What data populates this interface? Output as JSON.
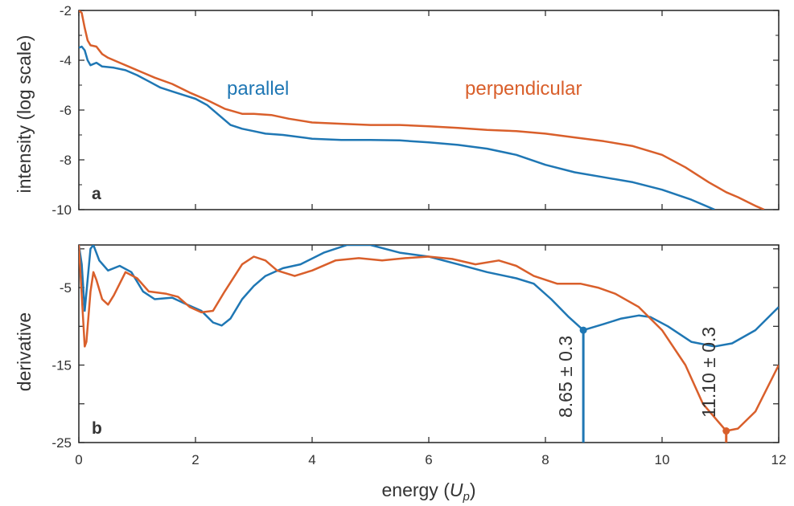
{
  "chart_data": [
    {
      "type": "line",
      "panel": "a",
      "panel_label": "a",
      "xlabel": "",
      "ylabel": "intensity (log scale)",
      "xlim": [
        0,
        12
      ],
      "ylim": [
        -10,
        -2
      ],
      "x_ticks": [
        0,
        2,
        4,
        6,
        8,
        10,
        12
      ],
      "y_ticks": [
        -10,
        -8,
        -6,
        -4,
        -2
      ],
      "y_tick_labels": [
        "-10",
        "-8",
        "-6",
        "-4",
        "-2"
      ],
      "x_tick_labels_shown": false,
      "grid": false,
      "series": [
        {
          "name": "parallel",
          "color": "#1f77b4",
          "points": [
            [
              0.0,
              -3.5
            ],
            [
              0.05,
              -3.45
            ],
            [
              0.1,
              -3.6
            ],
            [
              0.15,
              -4.0
            ],
            [
              0.2,
              -4.2
            ],
            [
              0.3,
              -4.1
            ],
            [
              0.4,
              -4.25
            ],
            [
              0.6,
              -4.3
            ],
            [
              0.8,
              -4.4
            ],
            [
              1.0,
              -4.6
            ],
            [
              1.2,
              -4.85
            ],
            [
              1.4,
              -5.1
            ],
            [
              1.6,
              -5.25
            ],
            [
              1.8,
              -5.4
            ],
            [
              2.0,
              -5.55
            ],
            [
              2.2,
              -5.8
            ],
            [
              2.4,
              -6.2
            ],
            [
              2.6,
              -6.6
            ],
            [
              2.8,
              -6.75
            ],
            [
              3.0,
              -6.85
            ],
            [
              3.2,
              -6.95
            ],
            [
              3.5,
              -7.0
            ],
            [
              4.0,
              -7.15
            ],
            [
              4.5,
              -7.2
            ],
            [
              5.0,
              -7.2
            ],
            [
              5.5,
              -7.22
            ],
            [
              6.0,
              -7.3
            ],
            [
              6.5,
              -7.4
            ],
            [
              7.0,
              -7.55
            ],
            [
              7.5,
              -7.8
            ],
            [
              8.0,
              -8.2
            ],
            [
              8.5,
              -8.5
            ],
            [
              9.0,
              -8.7
            ],
            [
              9.5,
              -8.9
            ],
            [
              10.0,
              -9.2
            ],
            [
              10.5,
              -9.6
            ],
            [
              10.9,
              -10.0
            ]
          ]
        },
        {
          "name": "perpendicular",
          "color": "#d95f2b",
          "points": [
            [
              0.0,
              -2.0
            ],
            [
              0.05,
              -2.1
            ],
            [
              0.1,
              -2.7
            ],
            [
              0.15,
              -3.2
            ],
            [
              0.2,
              -3.4
            ],
            [
              0.3,
              -3.45
            ],
            [
              0.4,
              -3.75
            ],
            [
              0.5,
              -3.9
            ],
            [
              0.7,
              -4.1
            ],
            [
              0.9,
              -4.3
            ],
            [
              1.1,
              -4.5
            ],
            [
              1.3,
              -4.7
            ],
            [
              1.6,
              -4.95
            ],
            [
              1.9,
              -5.3
            ],
            [
              2.2,
              -5.6
            ],
            [
              2.5,
              -5.95
            ],
            [
              2.8,
              -6.15
            ],
            [
              3.0,
              -6.15
            ],
            [
              3.3,
              -6.2
            ],
            [
              3.6,
              -6.35
            ],
            [
              4.0,
              -6.5
            ],
            [
              4.5,
              -6.55
            ],
            [
              5.0,
              -6.6
            ],
            [
              5.5,
              -6.6
            ],
            [
              6.0,
              -6.65
            ],
            [
              6.5,
              -6.72
            ],
            [
              7.0,
              -6.8
            ],
            [
              7.5,
              -6.85
            ],
            [
              8.0,
              -6.95
            ],
            [
              8.5,
              -7.1
            ],
            [
              9.0,
              -7.25
            ],
            [
              9.5,
              -7.45
            ],
            [
              10.0,
              -7.8
            ],
            [
              10.4,
              -8.3
            ],
            [
              10.8,
              -8.9
            ],
            [
              11.1,
              -9.3
            ],
            [
              11.3,
              -9.5
            ],
            [
              11.6,
              -9.85
            ],
            [
              11.75,
              -10.0
            ]
          ]
        }
      ],
      "series_labels": [
        "parallel",
        "perpendicular"
      ]
    },
    {
      "type": "line",
      "panel": "b",
      "panel_label": "b",
      "xlabel": "energy (U_p)",
      "xlabel_main": "energy (",
      "xlabel_var": "U",
      "xlabel_sub": "p",
      "xlabel_close": ")",
      "ylabel": "derivative",
      "xlim": [
        0,
        12
      ],
      "ylim": [
        -25,
        0.5
      ],
      "x_ticks": [
        0,
        2,
        4,
        6,
        8,
        10,
        12
      ],
      "x_tick_labels": [
        "0",
        "2",
        "4",
        "6",
        "8",
        "10",
        "12"
      ],
      "y_ticks": [
        -25,
        -15,
        -5
      ],
      "y_tick_labels": [
        "-25",
        "-15",
        "-5"
      ],
      "grid": false,
      "series": [
        {
          "name": "parallel",
          "color": "#1f77b4",
          "points": [
            [
              0.0,
              0.5
            ],
            [
              0.05,
              -2.0
            ],
            [
              0.1,
              -8.0
            ],
            [
              0.15,
              -4.0
            ],
            [
              0.2,
              0.0
            ],
            [
              0.25,
              0.5
            ],
            [
              0.35,
              -1.5
            ],
            [
              0.5,
              -2.8
            ],
            [
              0.7,
              -2.2
            ],
            [
              0.9,
              -3.0
            ],
            [
              1.1,
              -5.5
            ],
            [
              1.3,
              -6.5
            ],
            [
              1.6,
              -6.3
            ],
            [
              1.8,
              -7.0
            ],
            [
              2.1,
              -8.0
            ],
            [
              2.3,
              -9.5
            ],
            [
              2.45,
              -9.9
            ],
            [
              2.6,
              -9.0
            ],
            [
              2.8,
              -6.5
            ],
            [
              3.0,
              -4.8
            ],
            [
              3.2,
              -3.5
            ],
            [
              3.5,
              -2.5
            ],
            [
              3.8,
              -2.0
            ],
            [
              4.2,
              -0.5
            ],
            [
              4.6,
              0.5
            ],
            [
              5.0,
              0.5
            ],
            [
              5.5,
              -0.5
            ],
            [
              6.0,
              -1.0
            ],
            [
              6.5,
              -2.0
            ],
            [
              7.0,
              -3.0
            ],
            [
              7.5,
              -3.8
            ],
            [
              7.8,
              -4.5
            ],
            [
              8.1,
              -6.5
            ],
            [
              8.4,
              -8.8
            ],
            [
              8.65,
              -10.5
            ],
            [
              9.0,
              -9.7
            ],
            [
              9.3,
              -9.0
            ],
            [
              9.6,
              -8.6
            ],
            [
              9.8,
              -8.8
            ],
            [
              10.1,
              -10.0
            ],
            [
              10.5,
              -12.0
            ],
            [
              10.9,
              -12.6
            ],
            [
              11.2,
              -12.2
            ],
            [
              11.6,
              -10.5
            ],
            [
              12.0,
              -7.5
            ]
          ]
        },
        {
          "name": "perpendicular",
          "color": "#d95f2b",
          "points": [
            [
              0.0,
              0.5
            ],
            [
              0.05,
              -6.0
            ],
            [
              0.1,
              -12.6
            ],
            [
              0.13,
              -12.0
            ],
            [
              0.2,
              -5.5
            ],
            [
              0.25,
              -3.0
            ],
            [
              0.3,
              -4.0
            ],
            [
              0.4,
              -6.5
            ],
            [
              0.5,
              -7.2
            ],
            [
              0.6,
              -6.0
            ],
            [
              0.8,
              -3.0
            ],
            [
              1.0,
              -3.8
            ],
            [
              1.2,
              -5.5
            ],
            [
              1.5,
              -5.8
            ],
            [
              1.7,
              -6.2
            ],
            [
              1.9,
              -7.5
            ],
            [
              2.1,
              -8.2
            ],
            [
              2.3,
              -8.0
            ],
            [
              2.5,
              -5.5
            ],
            [
              2.8,
              -2.0
            ],
            [
              3.0,
              -1.0
            ],
            [
              3.2,
              -1.5
            ],
            [
              3.4,
              -2.8
            ],
            [
              3.7,
              -3.5
            ],
            [
              4.0,
              -2.8
            ],
            [
              4.4,
              -1.5
            ],
            [
              4.8,
              -1.2
            ],
            [
              5.2,
              -1.5
            ],
            [
              5.6,
              -1.2
            ],
            [
              6.0,
              -1.0
            ],
            [
              6.4,
              -1.3
            ],
            [
              6.8,
              -2.0
            ],
            [
              7.2,
              -1.5
            ],
            [
              7.5,
              -2.2
            ],
            [
              7.8,
              -3.5
            ],
            [
              8.2,
              -4.5
            ],
            [
              8.6,
              -4.5
            ],
            [
              8.9,
              -5.0
            ],
            [
              9.2,
              -5.8
            ],
            [
              9.6,
              -7.5
            ],
            [
              10.0,
              -10.5
            ],
            [
              10.4,
              -15.0
            ],
            [
              10.7,
              -20.0
            ],
            [
              11.1,
              -23.5
            ],
            [
              11.3,
              -23.2
            ],
            [
              11.6,
              -21.0
            ],
            [
              12.0,
              -15.0
            ]
          ]
        }
      ],
      "annotations": [
        {
          "label": "8.65 ± 0.3",
          "x": 8.65,
          "y": -10.5,
          "color": "#1f77b4",
          "series": "parallel"
        },
        {
          "label": "11.10 ± 0.3",
          "x": 11.1,
          "y": -23.5,
          "color": "#d95f2b",
          "series": "perpendicular"
        }
      ]
    }
  ]
}
